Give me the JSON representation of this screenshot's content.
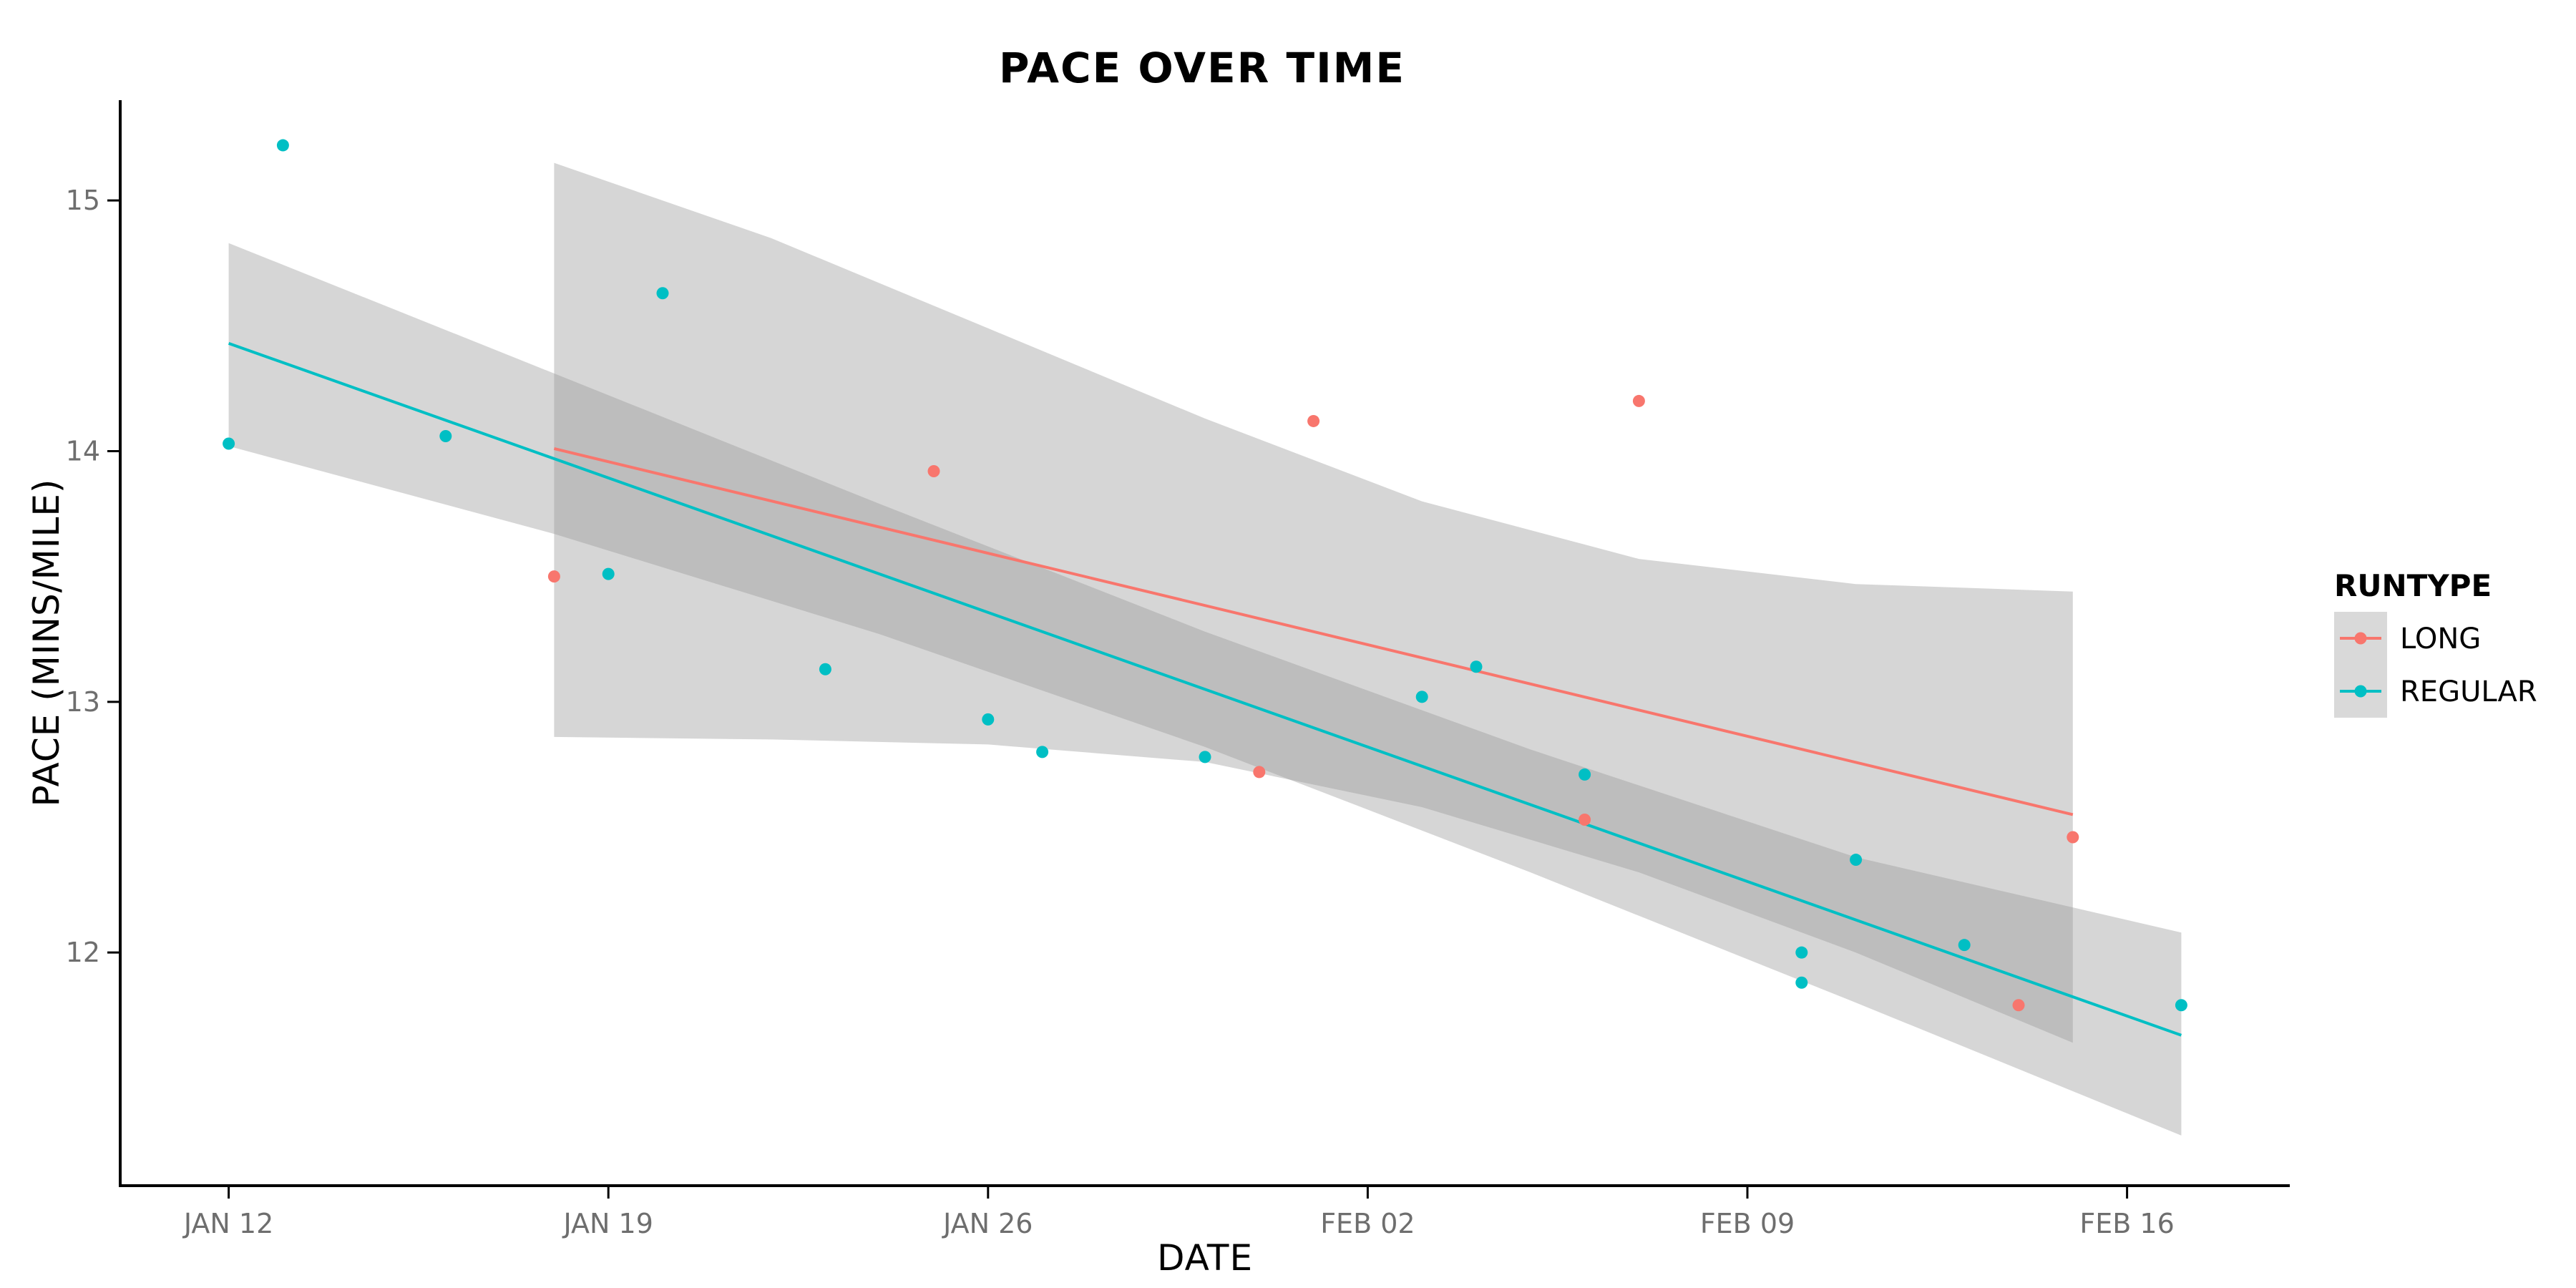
{
  "chart_data": {
    "type": "scatter",
    "title": "PACE OVER TIME",
    "xlabel": "DATE",
    "ylabel": "PACE (MINS/MILE)",
    "x_axis": {
      "kind": "date",
      "range": [
        "2014-01-10",
        "2014-02-19"
      ],
      "ticks": [
        "2014-01-12",
        "2014-01-19",
        "2014-01-26",
        "2014-02-02",
        "2014-02-09",
        "2014-02-16"
      ],
      "tick_labels": [
        "JAN 12",
        "JAN 19",
        "JAN 26",
        "FEB 02",
        "FEB 09",
        "FEB 16"
      ]
    },
    "y_axis": {
      "range": [
        11.07,
        15.4
      ],
      "ticks": [
        12,
        13,
        14,
        15
      ],
      "tick_labels": [
        "12",
        "13",
        "14",
        "15"
      ]
    },
    "grid": false,
    "legend": {
      "title": "RUNTYPE",
      "position": "right"
    },
    "series": [
      {
        "name": "LONG",
        "color": "#f8766d",
        "points": [
          {
            "x": "2014-01-18",
            "y": 13.5
          },
          {
            "x": "2014-01-25",
            "y": 13.92
          },
          {
            "x": "2014-01-31",
            "y": 12.72
          },
          {
            "x": "2014-02-01",
            "y": 14.12
          },
          {
            "x": "2014-02-06",
            "y": 12.53
          },
          {
            "x": "2014-02-07",
            "y": 14.2
          },
          {
            "x": "2014-02-14",
            "y": 11.79
          },
          {
            "x": "2014-02-15",
            "y": 12.46
          }
        ],
        "trend": {
          "x0": "2014-01-18",
          "y0": 14.01,
          "x1": "2014-02-15",
          "y1": 12.55
        },
        "confidence_band": [
          {
            "x": "2014-01-18",
            "lower": 12.86,
            "upper": 15.15
          },
          {
            "x": "2014-01-22",
            "lower": 12.85,
            "upper": 14.85
          },
          {
            "x": "2014-01-26",
            "lower": 12.83,
            "upper": 14.49
          },
          {
            "x": "2014-01-30",
            "lower": 12.76,
            "upper": 14.13
          },
          {
            "x": "2014-02-03",
            "lower": 12.58,
            "upper": 13.8
          },
          {
            "x": "2014-02-07",
            "lower": 12.32,
            "upper": 13.57
          },
          {
            "x": "2014-02-11",
            "lower": 12.0,
            "upper": 13.47
          },
          {
            "x": "2014-02-15",
            "lower": 11.64,
            "upper": 13.44
          }
        ]
      },
      {
        "name": "REGULAR",
        "color": "#00bfc4",
        "points": [
          {
            "x": "2014-01-12",
            "y": 14.03
          },
          {
            "x": "2014-01-13",
            "y": 15.22
          },
          {
            "x": "2014-01-16",
            "y": 14.06
          },
          {
            "x": "2014-01-19",
            "y": 13.51
          },
          {
            "x": "2014-01-20",
            "y": 14.63
          },
          {
            "x": "2014-01-23",
            "y": 13.13
          },
          {
            "x": "2014-01-26",
            "y": 12.93
          },
          {
            "x": "2014-01-27",
            "y": 12.8
          },
          {
            "x": "2014-01-30",
            "y": 12.78
          },
          {
            "x": "2014-02-03",
            "y": 13.02
          },
          {
            "x": "2014-02-04",
            "y": 13.14
          },
          {
            "x": "2014-02-06",
            "y": 12.71
          },
          {
            "x": "2014-02-10",
            "y": 12.0
          },
          {
            "x": "2014-02-10",
            "y": 11.88
          },
          {
            "x": "2014-02-11",
            "y": 12.37
          },
          {
            "x": "2014-02-13",
            "y": 12.03
          },
          {
            "x": "2014-02-17",
            "y": 11.79
          }
        ],
        "trend": {
          "x0": "2014-01-12",
          "y0": 14.43,
          "x1": "2014-02-17",
          "y1": 11.67
        },
        "confidence_band": [
          {
            "x": "2014-01-12",
            "lower": 14.02,
            "upper": 14.83
          },
          {
            "x": "2014-01-18",
            "lower": 13.67,
            "upper": 14.31
          },
          {
            "x": "2014-01-24",
            "lower": 13.27,
            "upper": 13.79
          },
          {
            "x": "2014-01-30",
            "lower": 12.82,
            "upper": 13.28
          },
          {
            "x": "2014-02-05",
            "lower": 12.32,
            "upper": 12.81
          },
          {
            "x": "2014-02-11",
            "lower": 11.8,
            "upper": 12.38
          },
          {
            "x": "2014-02-17",
            "lower": 11.27,
            "upper": 12.08
          }
        ]
      }
    ]
  }
}
